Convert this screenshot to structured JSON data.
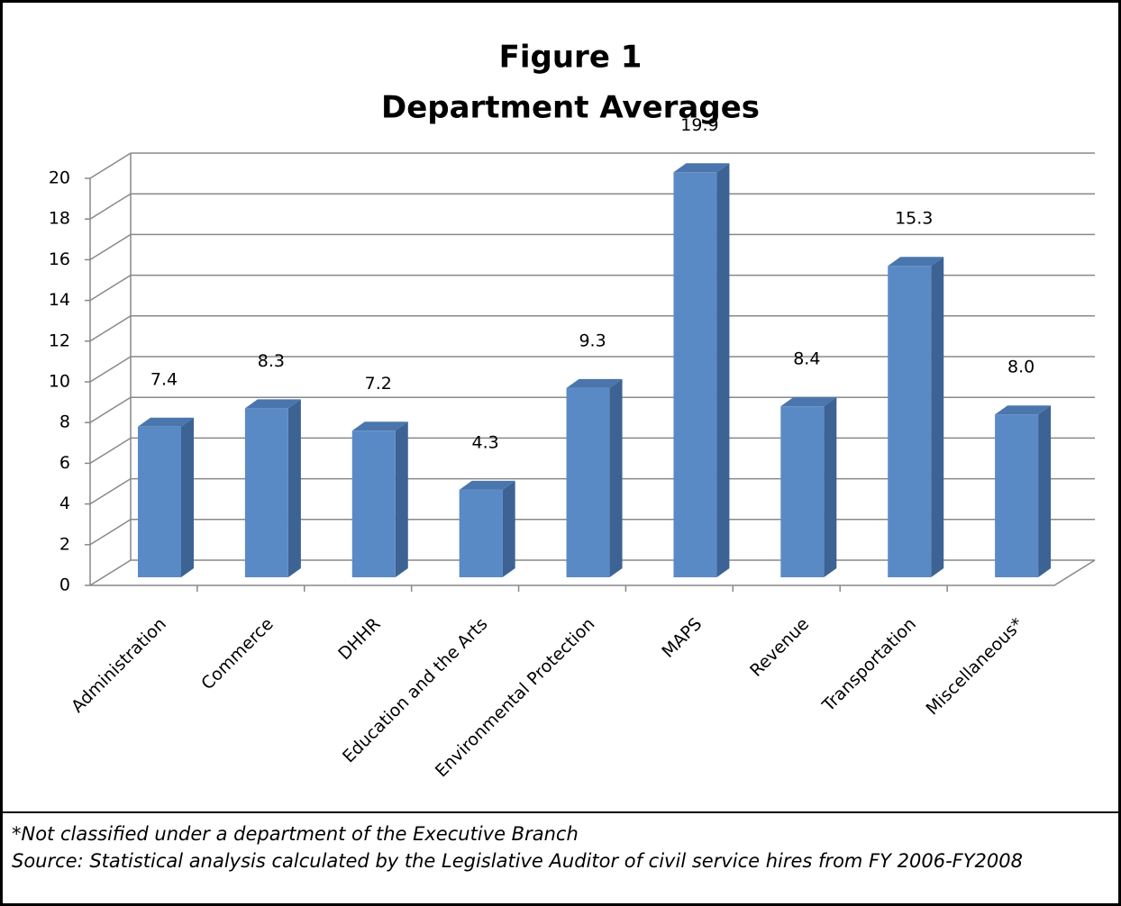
{
  "chart_data": {
    "type": "bar3d",
    "title": "Figure 1",
    "subtitle": "Department Averages",
    "categories": [
      "Administration",
      "Commerce",
      "DHHR",
      "Education and the Arts",
      "Environmental Protection",
      "MAPS",
      "Revenue",
      "Transportation",
      "Miscellaneous*"
    ],
    "values": [
      7.4,
      8.3,
      7.2,
      4.3,
      9.3,
      19.9,
      8.4,
      15.3,
      8.0
    ],
    "value_labels": [
      "7.4",
      "8.3",
      "7.2",
      "4.3",
      "9.3",
      "19.9",
      "8.4",
      "15.3",
      "8.0"
    ],
    "color": "#5a8ac6",
    "ylim": [
      0,
      20
    ],
    "yticks": [
      0,
      2,
      4,
      6,
      8,
      10,
      12,
      14,
      16,
      18,
      20
    ],
    "grid": true,
    "notes": [
      "*Not classified under a department of the Executive Branch",
      "Source:  Statistical analysis calculated by the Legislative Auditor of civil service hires from FY 2006-FY2008"
    ]
  }
}
